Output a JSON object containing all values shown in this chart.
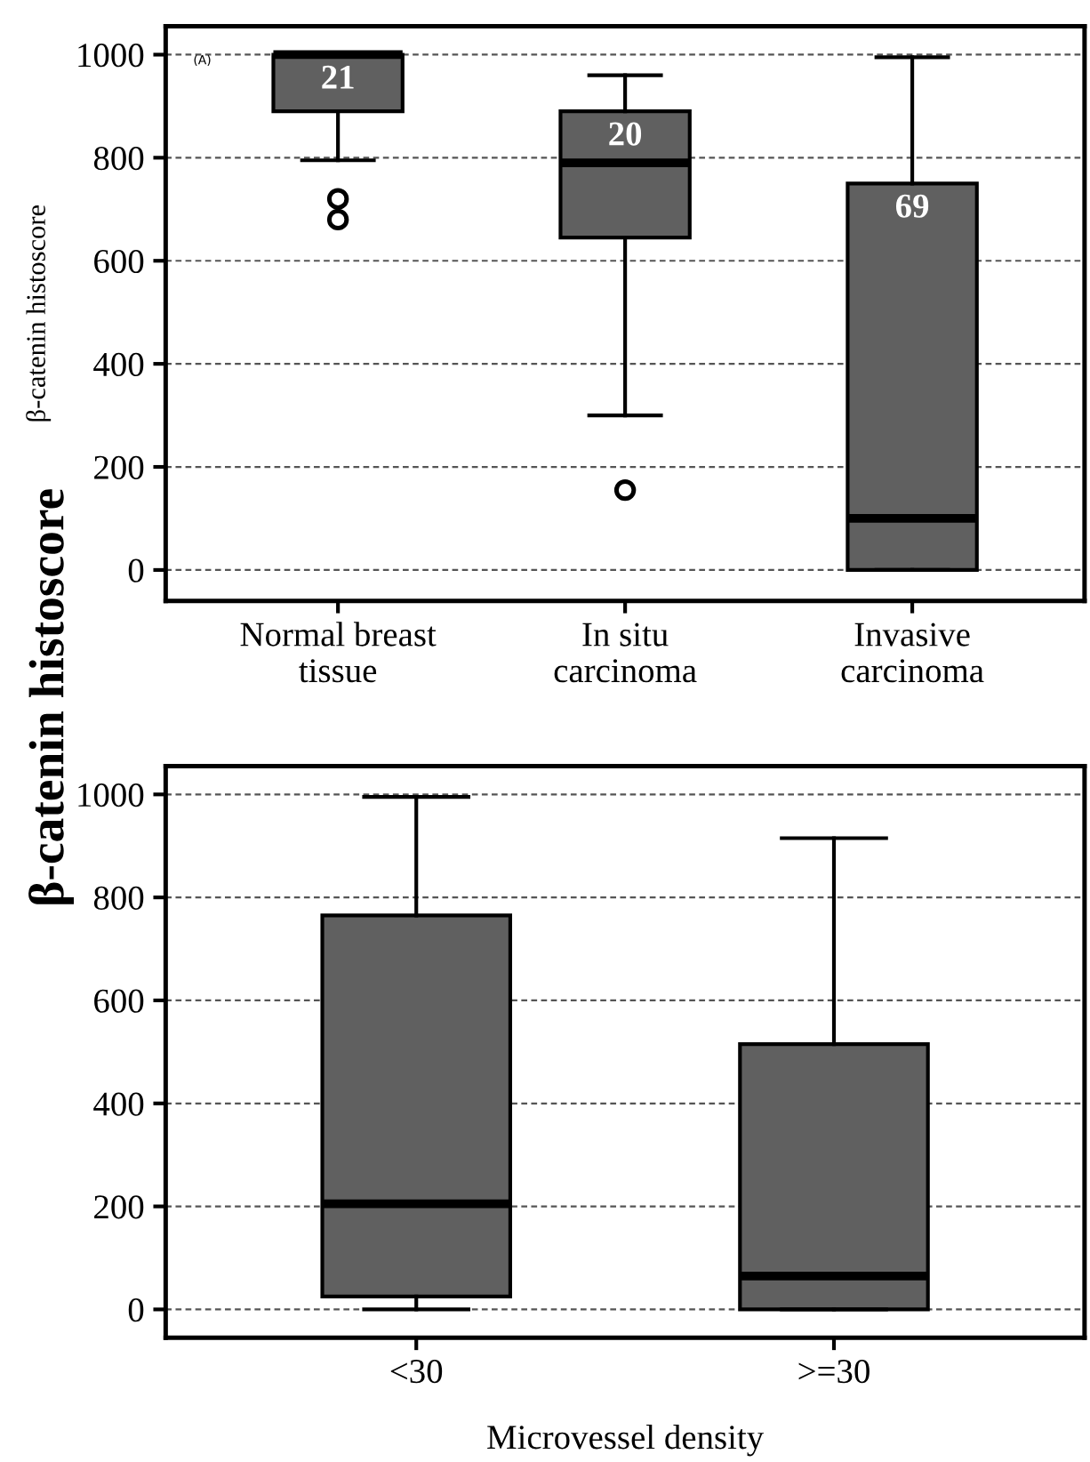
{
  "chart_data": [
    {
      "type": "box",
      "categories": [
        "Normal breast\ntissue",
        "In situ\ncarcinoma",
        "Invasive\ncarcinoma"
      ],
      "boxes": [
        {
          "low": 795,
          "q1": 890,
          "median": 1000,
          "q3": 1000,
          "high": 1000,
          "outliers": [
            720,
            680
          ]
        },
        {
          "low": 300,
          "q1": 645,
          "median": 790,
          "q3": 890,
          "high": 960,
          "outliers": [
            155
          ]
        },
        {
          "low": 0,
          "q1": 0,
          "median": 100,
          "q3": 750,
          "high": 995
        }
      ],
      "color": "#606060",
      "ylim": [
        -60,
        1055
      ],
      "yticks": [
        0,
        200,
        400,
        600,
        800,
        1000
      ],
      "grid": "y",
      "ylabel": "β-catenin histoscore",
      "annotations": [
        "(A)",
        "21",
        "20",
        "69"
      ]
    },
    {
      "type": "box",
      "categories": [
        "<30",
        ">=30"
      ],
      "boxes": [
        {
          "low": 0,
          "q1": 25,
          "median": 205,
          "q3": 765,
          "high": 995
        },
        {
          "low": 0,
          "q1": 0,
          "median": 65,
          "q3": 515,
          "high": 915
        }
      ],
      "color": "#606060",
      "ylim": [
        -55,
        1055
      ],
      "yticks": [
        0,
        200,
        400,
        600,
        800,
        1000
      ],
      "grid": "y",
      "ylabel": "β-catenin histoscore",
      "xlabel": "Microvessel density"
    }
  ]
}
